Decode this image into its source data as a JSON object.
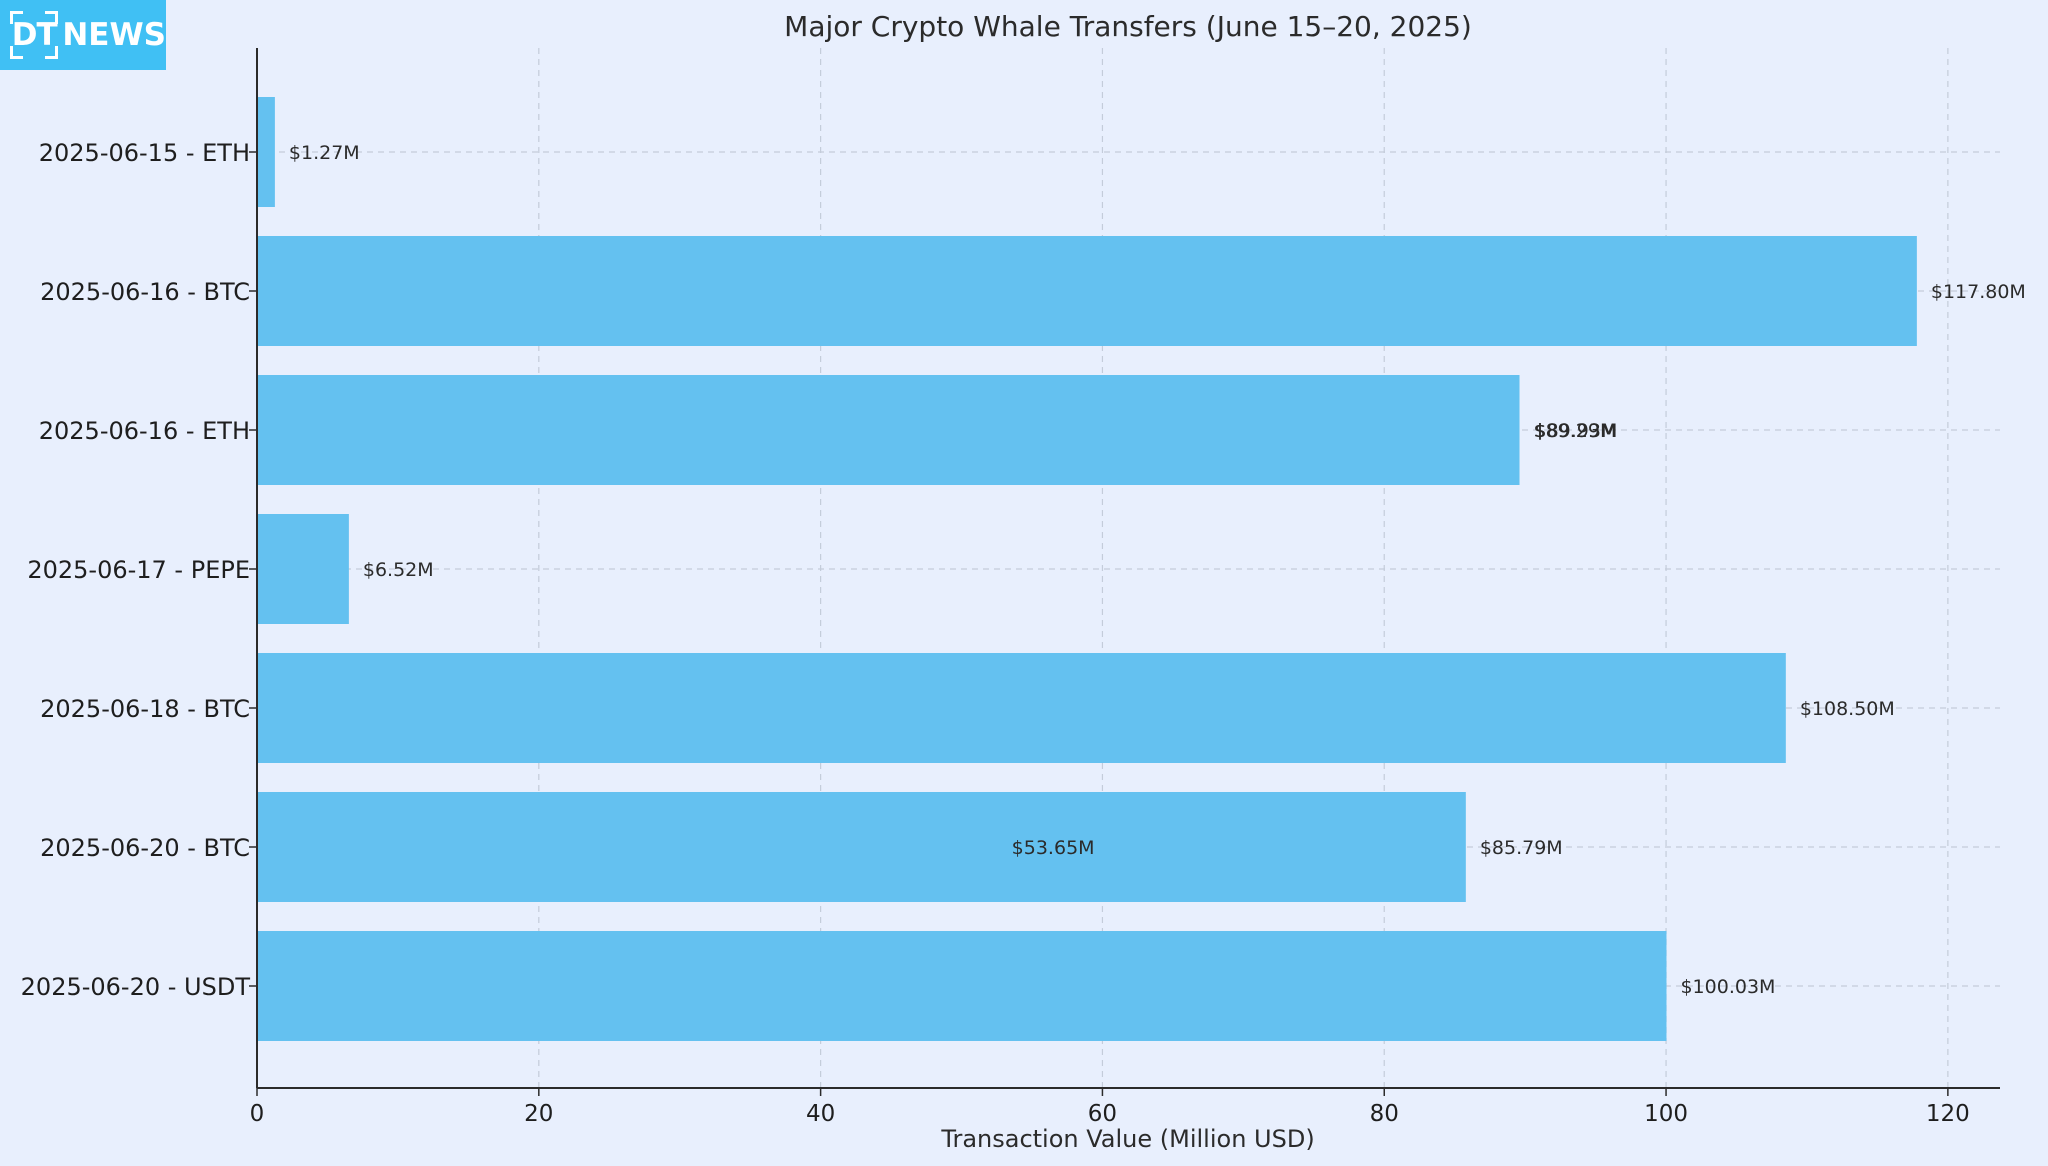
{
  "brand": {
    "logo_mark": "DT",
    "logo_word": "NEWS",
    "color": "#40c0f4"
  },
  "chart_data": {
    "type": "bar",
    "orientation": "horizontal",
    "title": "Major Crypto Whale Transfers (June 15–20, 2025)",
    "xlabel": "Transaction Value (Million USD)",
    "ylabel": "",
    "xlim": [
      0,
      123.7
    ],
    "xticks": [
      0,
      20,
      40,
      60,
      80,
      100,
      120
    ],
    "grid": true,
    "bar_color": "#64c1f0",
    "categories": [
      "2025-06-15 - ETH",
      "2025-06-16 - BTC",
      "2025-06-16 - ETH",
      "2025-06-17 - PEPE",
      "2025-06-18 - BTC",
      "2025-06-20 - BTC",
      "2025-06-20 - USDT"
    ],
    "values": [
      1.27,
      117.8,
      89.6,
      6.52,
      108.5,
      85.79,
      100.03
    ],
    "data_labels": [
      [
        "$1.27M"
      ],
      [
        "$117.80M"
      ],
      [
        "$89.29M",
        "$89.93M"
      ],
      [
        "$6.52M"
      ],
      [
        "$108.50M"
      ],
      [
        "$85.79M"
      ],
      [
        "$100.03M"
      ]
    ],
    "extra_labels": [
      {
        "text": "$53.65M",
        "row": 5,
        "x": 56.5
      }
    ]
  }
}
